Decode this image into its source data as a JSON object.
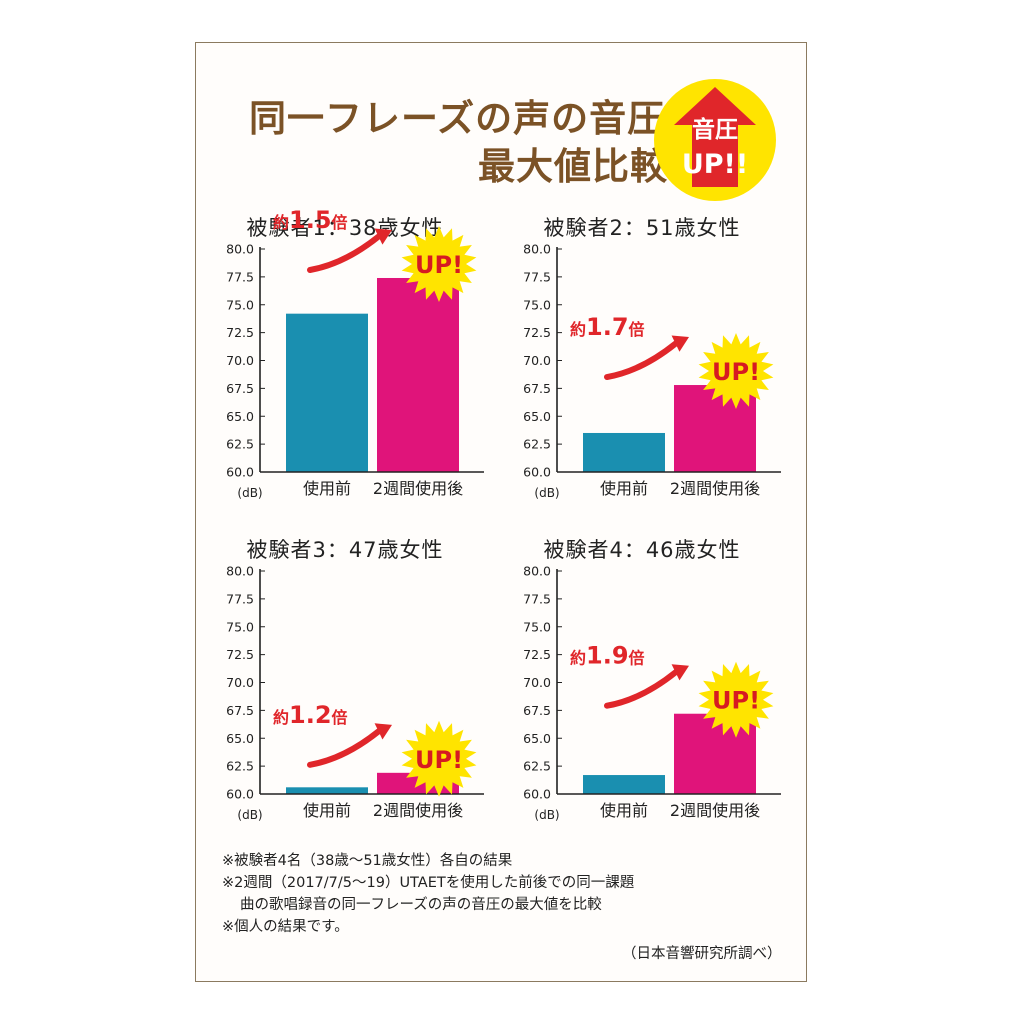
{
  "header": {
    "title_line1": "同一フレーズの声の音圧の",
    "title_line2": "最大値比較",
    "badge_line1": "音圧",
    "badge_line2": "UP!!"
  },
  "colors": {
    "before": "#1a8fb0",
    "after": "#e0147a",
    "arrow": "#e0262a",
    "title": "#7b5226",
    "burst": "#ffe400",
    "up_text": "#d61a22"
  },
  "chart_data": [
    {
      "type": "bar",
      "title": "被験者1：38歳女性",
      "categories": [
        "使用前",
        "2週間使用後"
      ],
      "values": [
        74.2,
        77.4
      ],
      "ylim": [
        60,
        80
      ],
      "yticks": [
        "80.0",
        "77.5",
        "75.0",
        "72.5",
        "70.0",
        "67.5",
        "65.0",
        "62.5",
        "60.0"
      ],
      "yunit": "(dB)",
      "ratio_prefix": "約",
      "ratio_value": "1.5",
      "ratio_suffix": "倍",
      "burst_label": "UP!"
    },
    {
      "type": "bar",
      "title": "被験者2：51歳女性",
      "categories": [
        "使用前",
        "2週間使用後"
      ],
      "values": [
        63.5,
        67.8
      ],
      "ylim": [
        60,
        80
      ],
      "yticks": [
        "80.0",
        "77.5",
        "75.0",
        "72.5",
        "70.0",
        "67.5",
        "65.0",
        "62.5",
        "60.0"
      ],
      "yunit": "(dB)",
      "ratio_prefix": "約",
      "ratio_value": "1.7",
      "ratio_suffix": "倍",
      "burst_label": "UP!"
    },
    {
      "type": "bar",
      "title": "被験者3：47歳女性",
      "categories": [
        "使用前",
        "2週間使用後"
      ],
      "values": [
        60.6,
        61.9
      ],
      "ylim": [
        60,
        80
      ],
      "yticks": [
        "80.0",
        "77.5",
        "75.0",
        "72.5",
        "70.0",
        "67.5",
        "65.0",
        "62.5",
        "60.0"
      ],
      "yunit": "(dB)",
      "ratio_prefix": "約",
      "ratio_value": "1.2",
      "ratio_suffix": "倍",
      "burst_label": "UP!"
    },
    {
      "type": "bar",
      "title": "被験者4：46歳女性",
      "categories": [
        "使用前",
        "2週間使用後"
      ],
      "values": [
        61.7,
        67.2
      ],
      "ylim": [
        60,
        80
      ],
      "yticks": [
        "80.0",
        "77.5",
        "75.0",
        "72.5",
        "70.0",
        "67.5",
        "65.0",
        "62.5",
        "60.0"
      ],
      "yunit": "(dB)",
      "ratio_prefix": "約",
      "ratio_value": "1.9",
      "ratio_suffix": "倍",
      "burst_label": "UP!"
    }
  ],
  "notes": {
    "line1": "※被験者4名（38歳～51歳女性）各自の結果",
    "line2": "※2週間（2017/7/5～19）UTAETを使用した前後での同一課題",
    "line3": "曲の歌唱録音の同一フレーズの声の音圧の最大値を比較",
    "line4": "※個人の結果です。",
    "source": "（日本音響研究所調べ）"
  }
}
